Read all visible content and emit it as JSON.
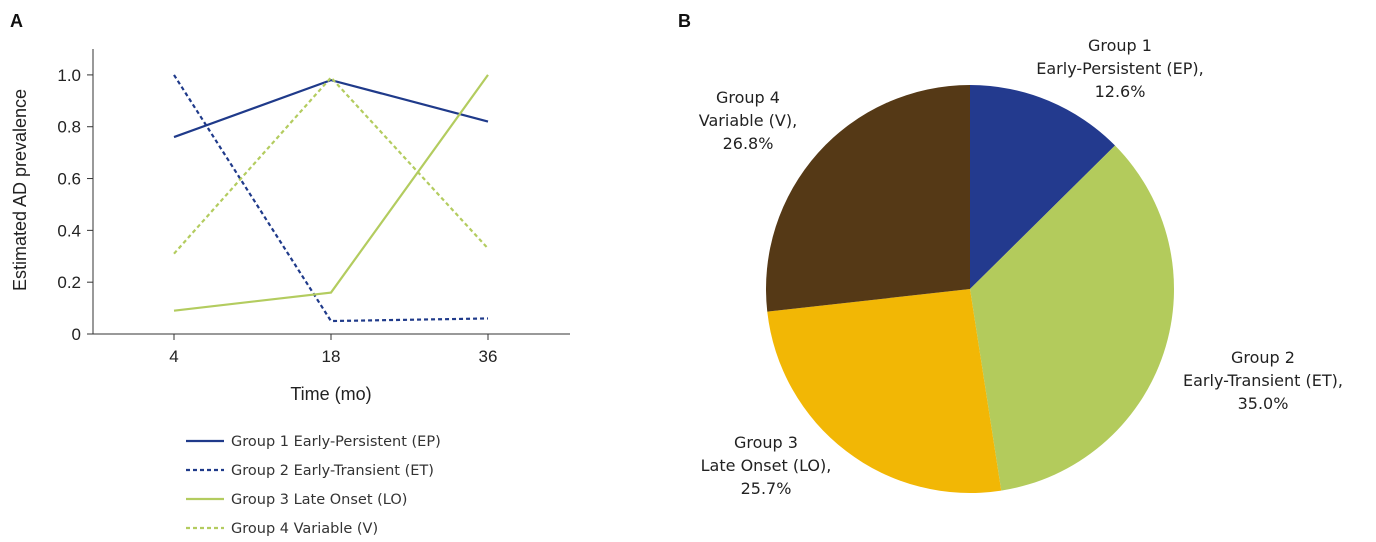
{
  "panel_a": {
    "label": "A"
  },
  "panel_b": {
    "label": "B"
  },
  "chart_data": [
    {
      "type": "line",
      "x": [
        4,
        18,
        36
      ],
      "categories": [
        "4",
        "18",
        "36"
      ],
      "xlabel": "Time (mo)",
      "ylabel": "Estimated AD prevalence",
      "ylim": [
        0,
        1.1
      ],
      "yticks": [
        "0",
        "0.2",
        "0.4",
        "0.6",
        "0.8",
        "1.0"
      ],
      "ytick_values": [
        0,
        0.2,
        0.4,
        0.6,
        0.8,
        1.0
      ],
      "legend_position": "bottom",
      "series": [
        {
          "name": "Group 1 Early-Persistent (EP)",
          "values": [
            0.76,
            0.98,
            0.82
          ],
          "color": "#1f3a8a",
          "dashed": false
        },
        {
          "name": "Group 2 Early-Transient (ET)",
          "values": [
            1.0,
            0.05,
            0.06
          ],
          "color": "#1f3a8a",
          "dashed": true
        },
        {
          "name": "Group 3 Late Onset (LO)",
          "values": [
            0.09,
            0.16,
            1.0
          ],
          "color": "#b3cc5f",
          "dashed": false
        },
        {
          "name": "Group 4 Variable (V)",
          "values": [
            0.31,
            0.99,
            0.33
          ],
          "color": "#b3cc5f",
          "dashed": true
        }
      ]
    },
    {
      "type": "pie",
      "slices": [
        {
          "lines": [
            "Group 1",
            "Early-Persistent (EP),",
            "12.6%"
          ],
          "value": 12.6,
          "color": "#233a8e"
        },
        {
          "lines": [
            "Group 2",
            "Early-Transient (ET),",
            "35.0%"
          ],
          "value": 35.0,
          "color": "#b3cb5c"
        },
        {
          "lines": [
            "Group 3",
            "Late Onset (LO),",
            "25.7%"
          ],
          "value": 25.7,
          "color": "#f2b705"
        },
        {
          "lines": [
            "Group 4",
            "Variable (V),",
            "26.8%"
          ],
          "value": 26.8,
          "color": "#553916"
        }
      ]
    }
  ]
}
